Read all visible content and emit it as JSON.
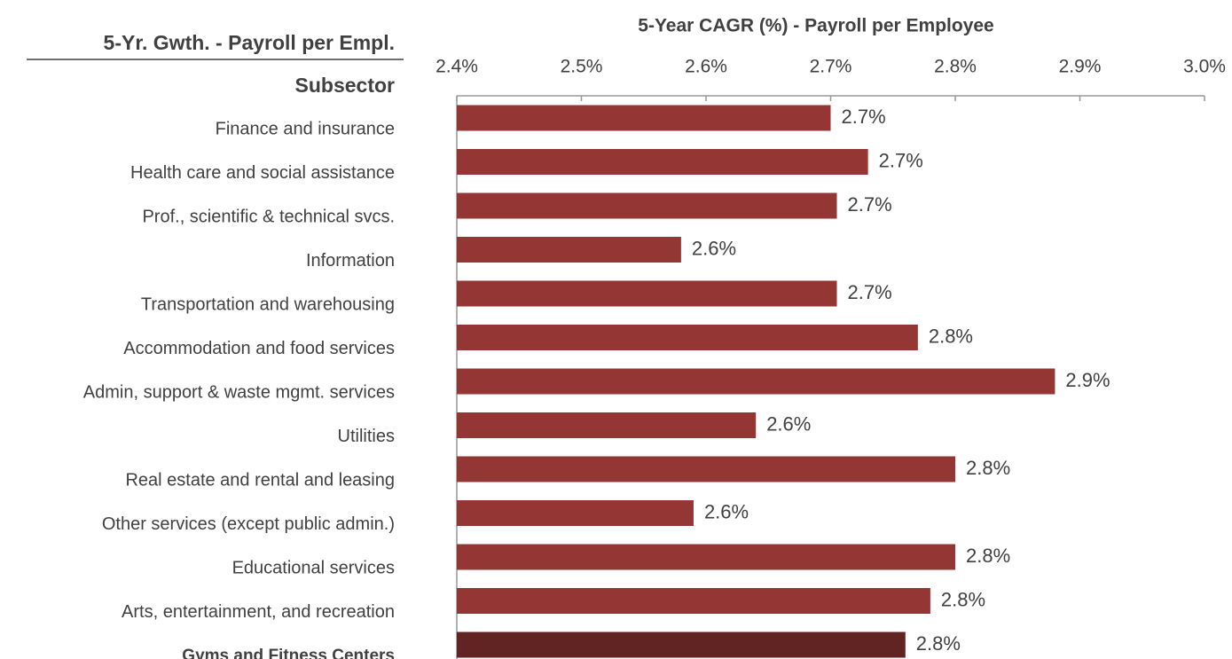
{
  "chart_data": {
    "type": "hbar",
    "title": "5-Year CAGR  (%) - Payroll per Employee",
    "header": "5-Yr. Gwth. - Payroll per Empl.",
    "category_header": "Subsector",
    "categories": [
      "Finance and insurance",
      "Health care and social assistance",
      "Prof., scientific & technical svcs.",
      "Information",
      "Transportation and warehousing",
      "Accommodation and food services",
      "Admin, support & waste mgmt. services",
      "Utilities",
      "Real estate and rental and leasing",
      "Other services (except public admin.)",
      "Educational services",
      "Arts, entertainment, and recreation",
      "Gyms and Fitness Centers"
    ],
    "values": [
      2.7,
      2.73,
      2.705,
      2.58,
      2.705,
      2.77,
      2.88,
      2.64,
      2.8,
      2.59,
      2.8,
      2.78,
      2.76
    ],
    "value_labels": [
      "2.7%",
      "2.7%",
      "2.7%",
      "2.6%",
      "2.7%",
      "2.8%",
      "2.9%",
      "2.6%",
      "2.8%",
      "2.6%",
      "2.8%",
      "2.8%",
      "2.8%"
    ],
    "colors": [
      "#943634",
      "#943634",
      "#943634",
      "#943634",
      "#943634",
      "#943634",
      "#943634",
      "#943634",
      "#943634",
      "#943634",
      "#943634",
      "#943634",
      "#622423"
    ],
    "xlim": [
      2.4,
      3.0
    ],
    "xticks": [
      {
        "value": 2.4,
        "label": "2.4%"
      },
      {
        "value": 2.5,
        "label": "2.5%"
      },
      {
        "value": 2.6,
        "label": "2.6%"
      },
      {
        "value": 2.7,
        "label": "2.7%"
      },
      {
        "value": 2.8,
        "label": "2.8%"
      },
      {
        "value": 2.9,
        "label": "2.9%"
      },
      {
        "value": 3.0,
        "label": "3.0%"
      }
    ]
  }
}
